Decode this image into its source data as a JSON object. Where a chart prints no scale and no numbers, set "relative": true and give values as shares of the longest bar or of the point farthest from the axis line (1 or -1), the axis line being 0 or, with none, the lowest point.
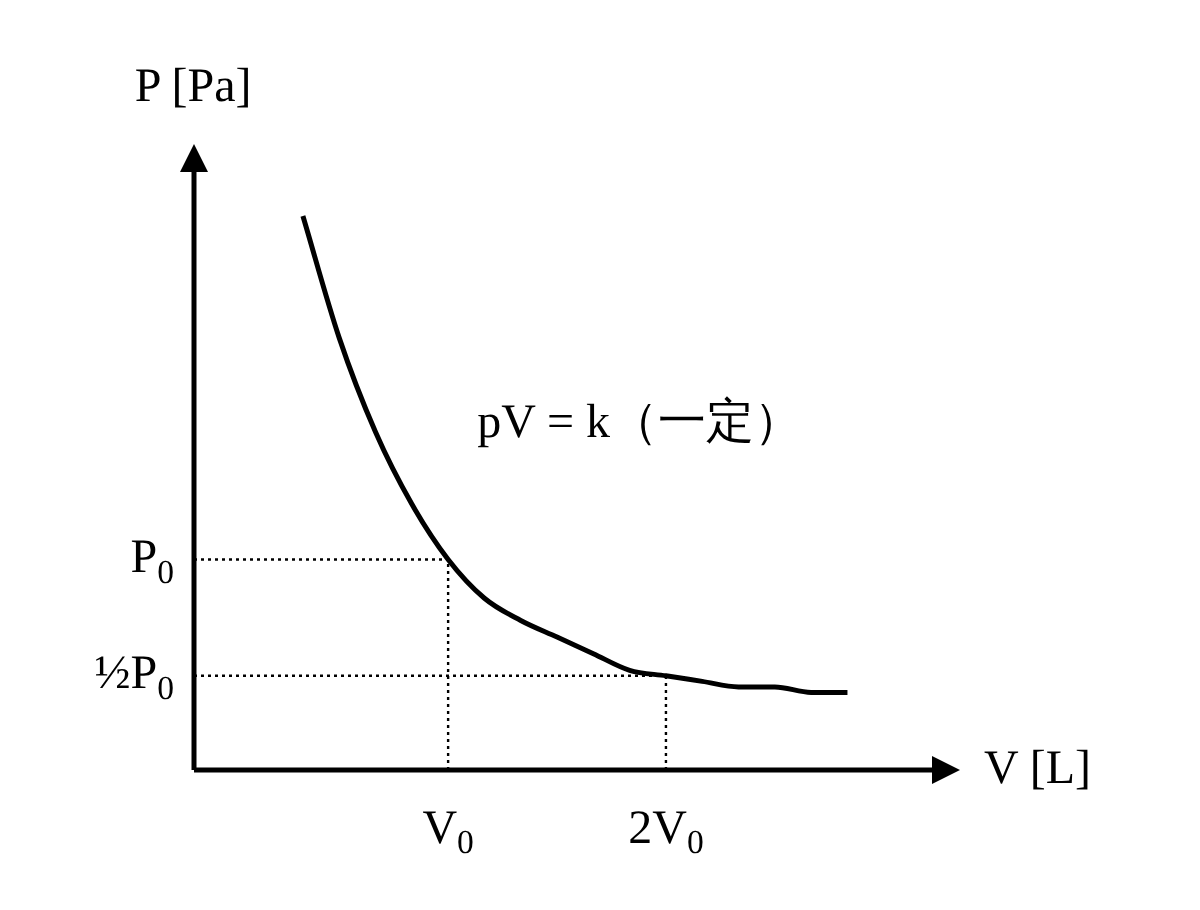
{
  "chart_data": {
    "type": "line",
    "xlabel": "V [L]",
    "ylabel": "P [Pa]",
    "relative": true,
    "categories": [
      null,
      null,
      null,
      null,
      "V$_{0}$",
      null,
      null,
      null,
      null,
      null,
      "2V$_{0}$",
      null,
      null,
      null,
      null,
      null
    ],
    "marker": "none",
    "legend": false,
    "annotations": [
      "pV = k（一定）"
    ],
    "ref_lines": [
      {
        "axis": "y",
        "value": 0.38,
        "label": "P$_{0}$",
        "color": "#000000",
        "line_style": "dotted"
      },
      {
        "axis": "y",
        "value": 0.17,
        "label": "½P$_{0}$",
        "color": "#000000",
        "line_style": "dotted"
      },
      {
        "axis": "x",
        "value": "V$_{0}$",
        "color": "#000000",
        "line_style": "dotted"
      },
      {
        "axis": "x",
        "value": "2V$_{0}$",
        "color": "#000000",
        "line_style": "dotted"
      }
    ],
    "series": [
      {
        "color": "#000000",
        "line_style": "solid",
        "values": [
          1,
          0.78,
          0.61,
          0.48,
          0.38,
          0.31,
          0.27,
          0.24,
          0.21,
          0.18,
          0.17,
          0.16,
          0.15,
          0.15,
          0.14,
          0.14
        ]
      }
    ]
  }
}
